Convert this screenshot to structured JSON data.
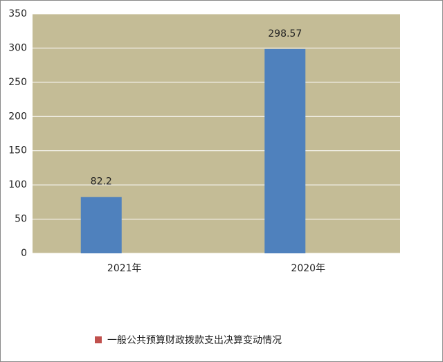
{
  "chart_data": {
    "type": "bar",
    "categories": [
      "2021年",
      "2020年"
    ],
    "series": [
      {
        "name": "一般公共预算财政拨款支出决算变动情况",
        "color": "#4f81bd",
        "values": [
          82.2,
          298.57
        ]
      }
    ],
    "legend_color": "#c0504d",
    "plot_background": "#c4bc96",
    "ylim": [
      0,
      350
    ],
    "yticks": [
      0,
      50,
      100,
      150,
      200,
      250,
      300,
      350
    ],
    "grid": true,
    "legend": "bottom"
  }
}
